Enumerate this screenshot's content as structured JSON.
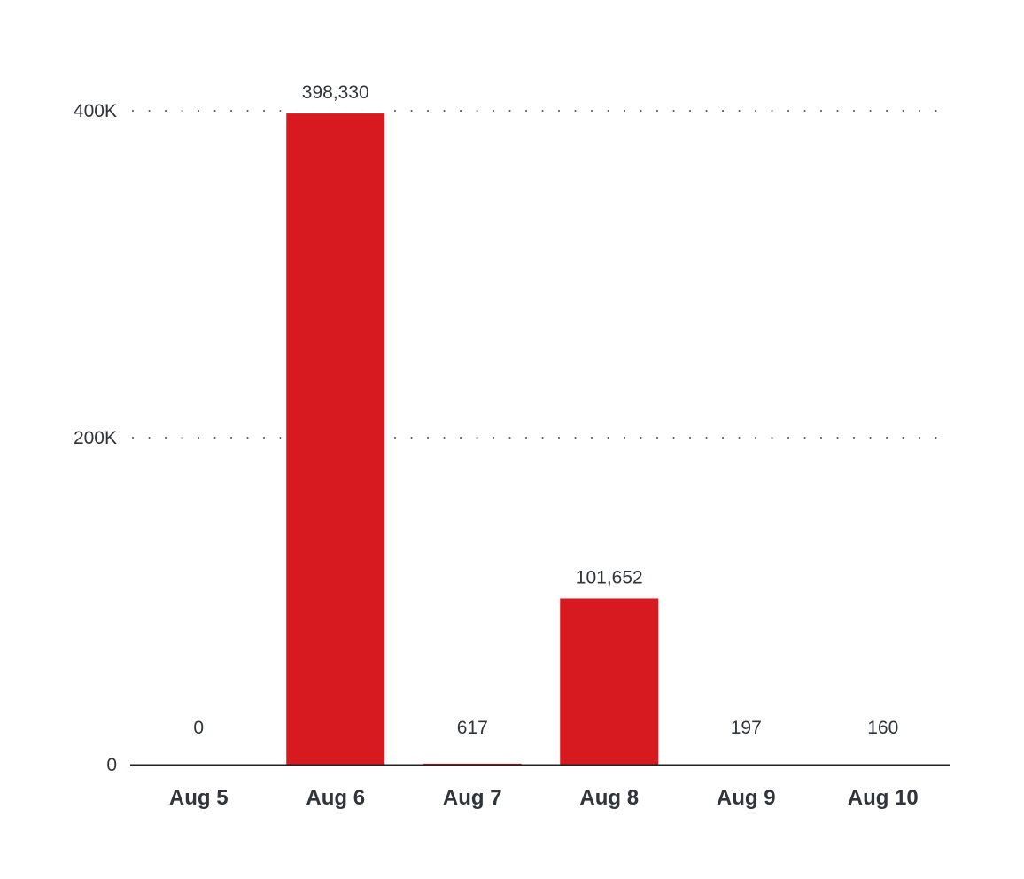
{
  "chart_data": {
    "type": "bar",
    "title": "",
    "xlabel": "",
    "ylabel": "",
    "categories": [
      "Aug 5",
      "Aug 6",
      "Aug 7",
      "Aug 8",
      "Aug 9",
      "Aug 10"
    ],
    "values": [
      0,
      398330,
      617,
      101652,
      197,
      160
    ],
    "data_labels": [
      "0",
      "398,330",
      "617",
      "101,652",
      "197",
      "160"
    ],
    "ylim": [
      0,
      400000
    ],
    "yticks": [
      0,
      200000,
      400000
    ],
    "ytick_labels": [
      "0",
      "200K",
      "400K"
    ],
    "grid": true,
    "legend": "none",
    "bar_color": "#d71920",
    "text_color": "#2f353b"
  }
}
